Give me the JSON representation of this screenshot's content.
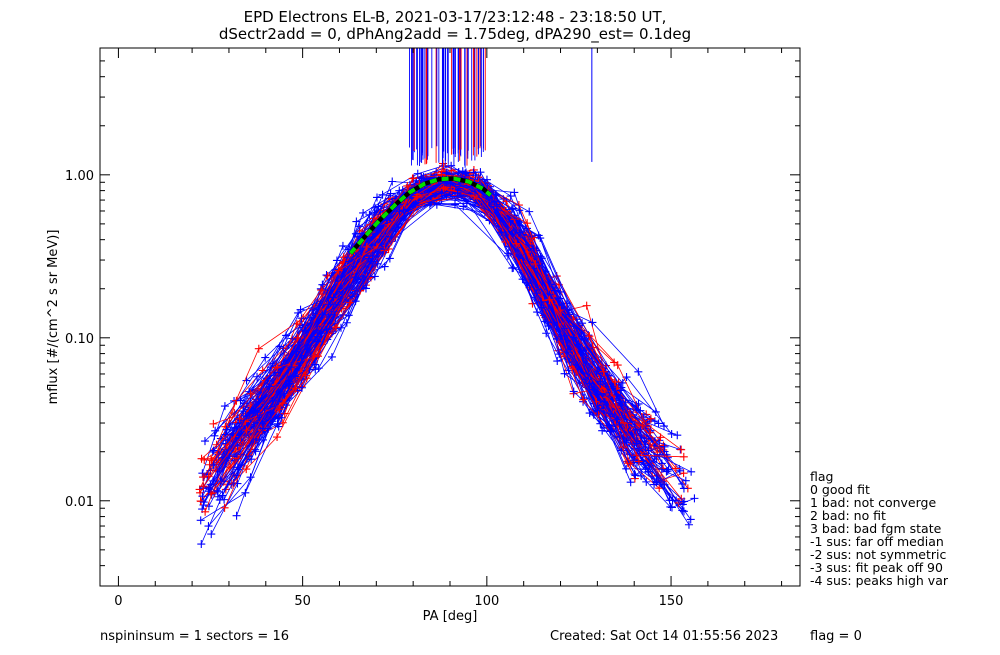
{
  "header": {
    "title_line1": "EPD Electrons EL-B, 2021-03-17/23:12:48 - 23:18:50 UT,",
    "title_line2": "dSectr2add = 0, dPhAng2add = 1.75deg, dPA290_est=    0.1deg"
  },
  "chart_data": {
    "type": "line",
    "xlabel": "PA [deg]",
    "ylabel": "mflux [#/(cm^2 s sr MeV)]",
    "xlim": [
      -5,
      185
    ],
    "ylim": [
      0.003,
      6.0
    ],
    "yscale": "log",
    "grid": false,
    "x_ticks": [
      0,
      50,
      100,
      150
    ],
    "x_tick_labels": [
      "0",
      "50",
      "100",
      "150"
    ],
    "y_ticks": [
      0.01,
      0.1,
      1.0
    ],
    "y_tick_labels": [
      "0.01",
      "0.10",
      "1.00"
    ],
    "colors": {
      "series_a": "#ff0000",
      "series_b": "#0000ff",
      "fit": "#00dd00"
    },
    "envelope": {
      "x": [
        23,
        30,
        40,
        50,
        60,
        70,
        80,
        90,
        100,
        110,
        120,
        130,
        140,
        150,
        156
      ],
      "y_center": [
        0.012,
        0.02,
        0.04,
        0.08,
        0.2,
        0.42,
        0.78,
        0.92,
        0.78,
        0.36,
        0.12,
        0.05,
        0.025,
        0.014,
        0.011
      ]
    },
    "fit_curve": {
      "x": [
        63,
        67,
        71,
        75,
        79,
        83,
        87,
        91,
        95,
        99,
        101
      ],
      "y": [
        0.33,
        0.42,
        0.53,
        0.65,
        0.78,
        0.88,
        0.94,
        0.95,
        0.91,
        0.82,
        0.75
      ]
    }
  },
  "legend": {
    "title": "flag",
    "entries": [
      " 0 good fit",
      " 1 bad: not converge",
      " 2 bad: no fit",
      " 3 bad: bad fgm state",
      "-1 sus: far off median",
      "-2 sus: not symmetric",
      "-3 sus: fit peak off 90",
      "-4 sus: peaks high var"
    ]
  },
  "footer": {
    "left": "nspininsum =  1  sectors = 16",
    "middle": "Created: Sat Oct 14 01:55:56 2023",
    "right": "flag = 0"
  }
}
